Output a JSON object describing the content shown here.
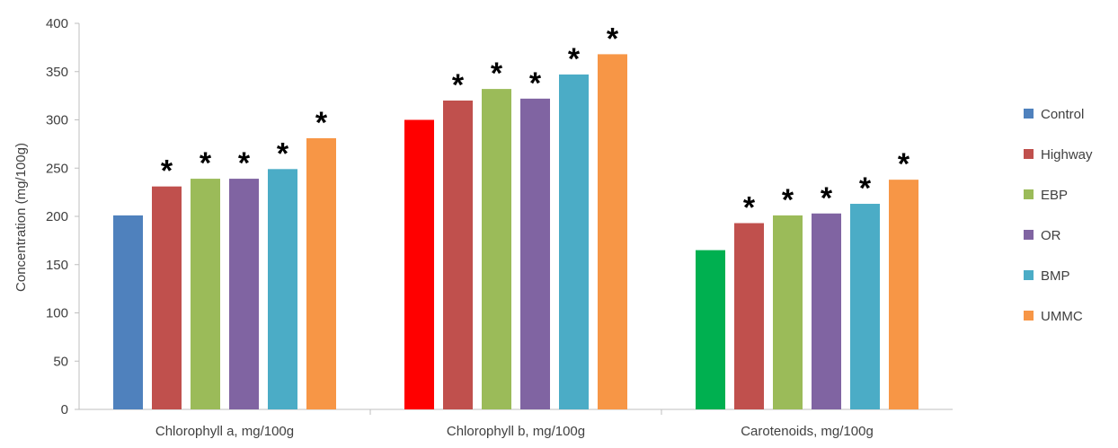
{
  "chart_data": {
    "type": "bar",
    "title": "",
    "xlabel": "",
    "ylabel": "Concentration (mg/100g)",
    "ylim": [
      0,
      400
    ],
    "yticks": [
      0,
      50,
      100,
      150,
      200,
      250,
      300,
      350,
      400
    ],
    "grid": false,
    "legend_position": "right",
    "categories": [
      "Chlorophyll a, mg/100g",
      "Chlorophyll b, mg/100g",
      "Carotenoids, mg/100g"
    ],
    "series": [
      {
        "name": "Control",
        "values": [
          201,
          300,
          165
        ],
        "color": "#4f81bd",
        "point_colors": [
          "#4f81bd",
          "#ff0000",
          "#00b050"
        ],
        "significant": [
          false,
          false,
          false
        ]
      },
      {
        "name": "Highway",
        "values": [
          231,
          320,
          193
        ],
        "color": "#c0504d",
        "significant": [
          true,
          true,
          true
        ]
      },
      {
        "name": "EBP",
        "values": [
          239,
          332,
          201
        ],
        "color": "#9bbb59",
        "significant": [
          true,
          true,
          true
        ]
      },
      {
        "name": "OR",
        "values": [
          239,
          322,
          203
        ],
        "color": "#8064a2",
        "significant": [
          true,
          true,
          true
        ]
      },
      {
        "name": "BMP",
        "values": [
          249,
          347,
          213
        ],
        "color": "#4bacc6",
        "significant": [
          true,
          true,
          true
        ]
      },
      {
        "name": "UMMC",
        "values": [
          281,
          368,
          238
        ],
        "color": "#f79646",
        "significant": [
          true,
          true,
          true
        ]
      }
    ],
    "annotation_symbol": "*"
  }
}
